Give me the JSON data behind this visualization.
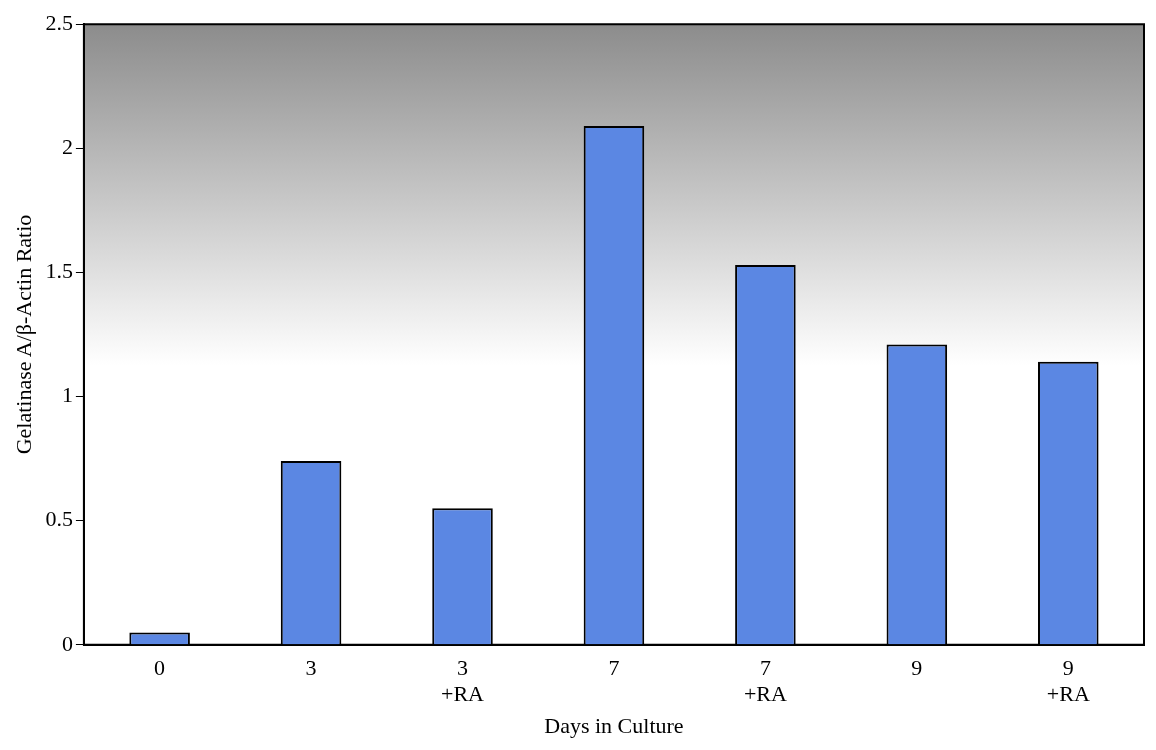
{
  "chart_data": {
    "type": "bar",
    "xlabel": "Days in Culture",
    "ylabel": "Gelatinase A/β-Actin Ratio",
    "categories": [
      "0",
      "3",
      "3\n+RA",
      "7",
      "7\n+RA",
      "9",
      "9\n+RA"
    ],
    "values": [
      0.05,
      0.74,
      0.55,
      2.09,
      1.53,
      1.21,
      1.14
    ],
    "color": "#5b87e3",
    "ylim": [
      0,
      2.5
    ],
    "yticks": [
      0,
      0.5,
      1,
      1.5,
      2,
      2.5
    ],
    "grid": false,
    "legend": false
  }
}
